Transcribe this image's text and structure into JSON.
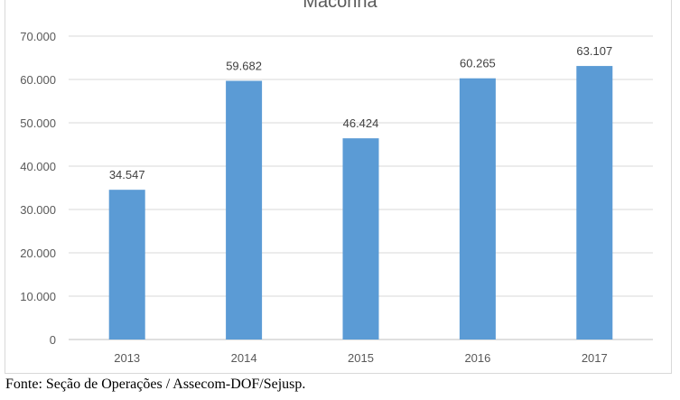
{
  "chart_data": {
    "type": "bar",
    "title": "Maconha",
    "categories": [
      "2013",
      "2014",
      "2015",
      "2016",
      "2017"
    ],
    "values": [
      34547,
      59682,
      46424,
      60265,
      63107
    ],
    "data_labels": [
      "34.547",
      "59.682",
      "46.424",
      "60.265",
      "63.107"
    ],
    "ylim": [
      0,
      70000
    ],
    "yticks": [
      0,
      10000,
      20000,
      30000,
      40000,
      50000,
      60000,
      70000
    ],
    "ytick_labels": [
      "0",
      "10.000",
      "20.000",
      "30.000",
      "40.000",
      "50.000",
      "60.000",
      "70.000"
    ],
    "grid": true,
    "bar_color": "#5b9bd5",
    "xlabel": "",
    "ylabel": ""
  },
  "source": "Fonte: Seção de Operações / Assecom-DOF/Sejusp."
}
